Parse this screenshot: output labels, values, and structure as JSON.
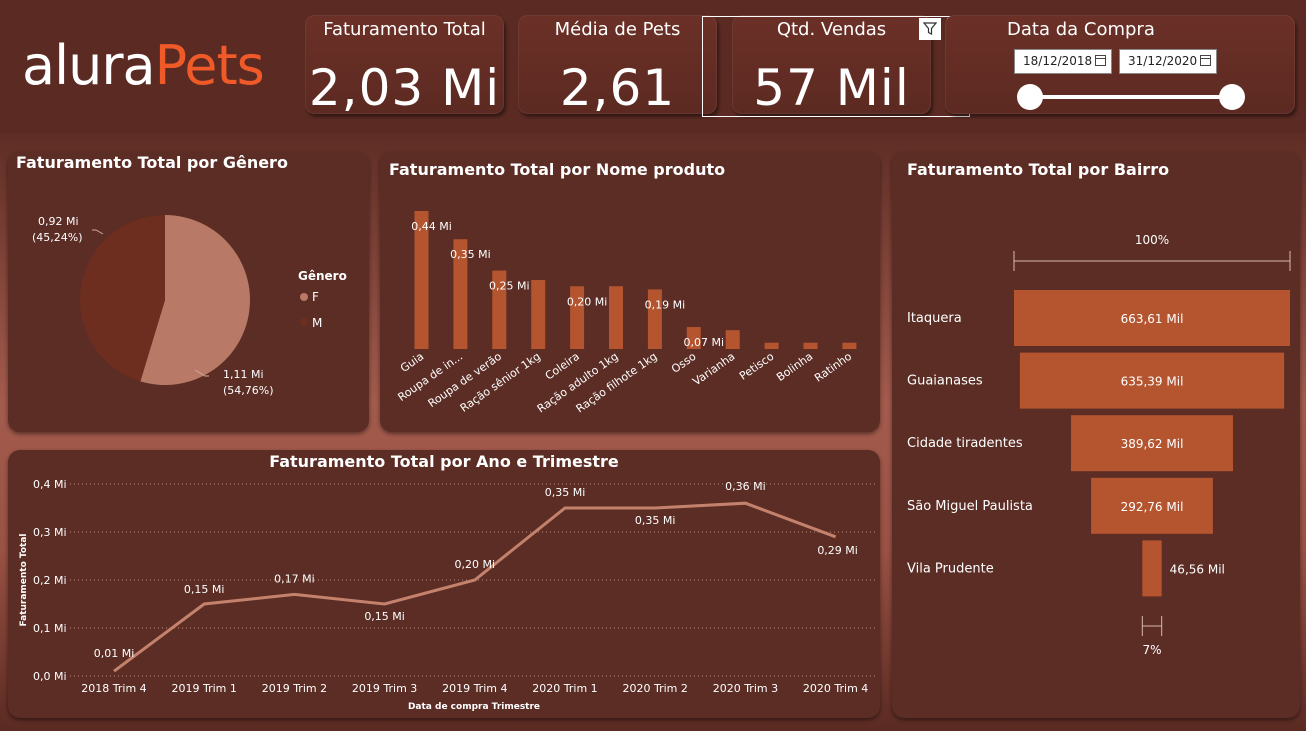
{
  "logo": {
    "part1": "alura",
    "part2": "Pets"
  },
  "kpis": {
    "faturamento": {
      "title": "Faturamento Total",
      "value": "2,03 Mi"
    },
    "media_pets": {
      "title": "Média de Pets",
      "value": "2,61"
    },
    "qtd_vendas": {
      "title": "Qtd. Vendas",
      "value": "57 Mil"
    }
  },
  "visual_header": {
    "filter_icon": "filter-icon",
    "more_icon": "more-options-icon",
    "more_label": "···"
  },
  "date_filter": {
    "title": "Data da Compra",
    "start": "18/12/2018",
    "end": "31/12/2020",
    "slider_value": [
      0,
      1
    ]
  },
  "panels": {
    "genero": {
      "title": "Faturamento Total por Gênero",
      "legend_title": "Gênero"
    },
    "produto": {
      "title": "Faturamento Total por Nome produto"
    },
    "trimestre": {
      "title": "Faturamento Total por Ano e Trimestre"
    },
    "bairro": {
      "title": "Faturamento Total por Bairro"
    }
  },
  "colors": {
    "F": "#b87a66",
    "M": "#6d2e20",
    "bar": "#b45530",
    "line": "#c4826d",
    "funnel": "#b45530"
  },
  "chart_data": [
    {
      "type": "pie",
      "title": "Faturamento Total por Gênero",
      "legend_title": "Gênero",
      "slices": [
        {
          "name": "F",
          "value": 1.11,
          "label": "1,11 Mi",
          "pct": "(54,76%)",
          "share": 54.76
        },
        {
          "name": "M",
          "value": 0.92,
          "label": "0,92 Mi",
          "pct": "(45,24%)",
          "share": 45.24
        }
      ]
    },
    {
      "type": "bar",
      "title": "Faturamento Total por Nome produto",
      "categories": [
        "Guia",
        "Roupa de in...",
        "Roupa de verão",
        "Ração sênior 1kg",
        "Coleira",
        "Ração adulto 1kg",
        "Ração filhote 1kg",
        "Osso",
        "Varianha",
        "Petisco",
        "Bolinha",
        "Ratinho"
      ],
      "values": [
        0.44,
        0.35,
        0.25,
        0.22,
        0.2,
        0.2,
        0.19,
        0.07,
        0.06,
        0.02,
        0.02,
        0.02
      ],
      "labels": [
        "0,44 Mi",
        "0,35 Mi",
        "0,25 Mi",
        "",
        "0,20 Mi",
        "",
        "0,19 Mi",
        "0,07 Mi",
        "",
        "",
        "",
        ""
      ]
    },
    {
      "type": "line",
      "title": "Faturamento Total por Ano e Trimestre",
      "xlabel": "Data de compra Trimestre",
      "ylabel": "Faturamento Total",
      "yticks": [
        "0,0 Mi",
        "0,1 Mi",
        "0,2 Mi",
        "0,3 Mi",
        "0,4 Mi"
      ],
      "ylim": [
        0,
        0.4
      ],
      "grid": true,
      "x": [
        "2018 Trim 4",
        "2019 Trim 1",
        "2019 Trim 2",
        "2019 Trim 3",
        "2019 Trim 4",
        "2020 Trim 1",
        "2020 Trim 2",
        "2020 Trim 3",
        "2020 Trim 4"
      ],
      "values": [
        0.01,
        0.15,
        0.17,
        0.15,
        0.2,
        0.35,
        0.35,
        0.36,
        0.29
      ],
      "labels": [
        "0,01 Mi",
        "0,15 Mi",
        "0,17 Mi",
        "0,15 Mi",
        "0,20 Mi",
        "0,35 Mi",
        "0,35 Mi",
        "0,36 Mi",
        "0,29 Mi"
      ]
    },
    {
      "type": "bar",
      "subtype": "funnel",
      "title": "Faturamento Total por Bairro",
      "top_pct": "100%",
      "bottom_pct": "7%",
      "categories": [
        "Itaquera",
        "Guaianases",
        "Cidade tiradentes",
        "São Miguel Paulista",
        "Vila Prudente"
      ],
      "values": [
        663.61,
        635.39,
        389.62,
        292.76,
        46.56
      ],
      "labels": [
        "663,61 Mil",
        "635,39 Mil",
        "389,62 Mil",
        "292,76 Mil",
        "46,56 Mil"
      ]
    }
  ]
}
